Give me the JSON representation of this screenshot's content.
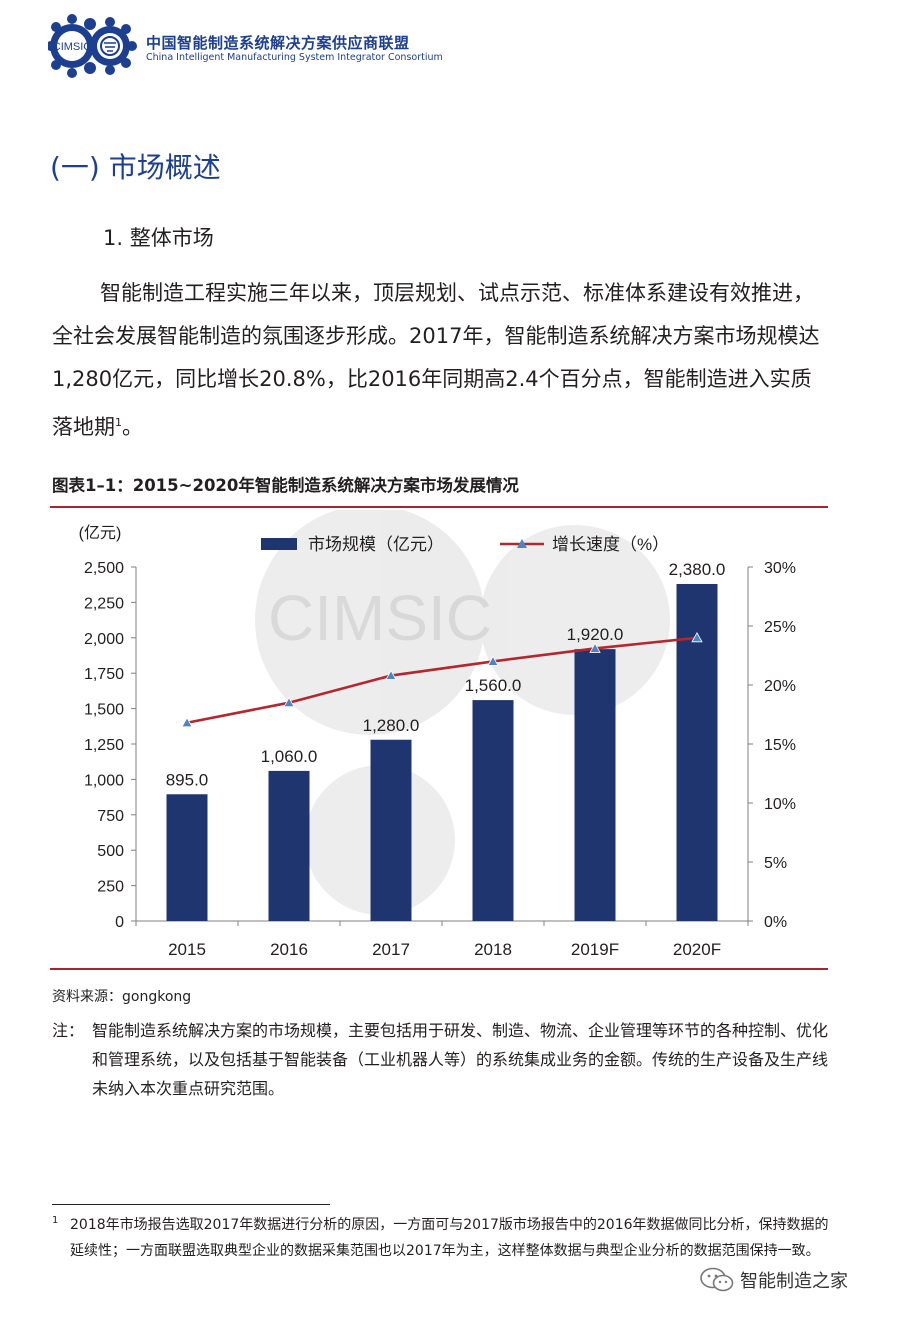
{
  "header": {
    "logo_text": "CIMSIC",
    "org_name_cn": "中国智能制造系统解决方案供应商联盟",
    "org_name_en": "China Intelligent Manufacturing System Integrator Consortium"
  },
  "section_title": "(一) 市场概述",
  "subsection_title": "1. 整体市场",
  "paragraph": {
    "text": "智能制造工程实施三年以来，顶层规划、试点示范、标准体系建设有效推进，全社会发展智能制造的氛围逐步形成。2017年，智能制造系统解决方案市场规模达1,280亿元，同比增长20.8%，比2016年同期高2.4个百分点，智能制造进入实质落地期",
    "footnote_ref": "1",
    "end": "。"
  },
  "figure": {
    "caption": "图表1–1：2015~2020年智能制造系统解决方案市场发展情况",
    "watermark": "CIMSIC",
    "source": "资料来源：gongkong",
    "note_label": "注：",
    "note_text": "智能制造系统解决方案的市场规模，主要包括用于研发、制造、物流、企业管理等环节的各种控制、优化和管理系统，以及包括基于智能装备（工业机器人等）的系统集成业务的金额。传统的生产设备及生产线未纳入本次重点研究范围。"
  },
  "footnote": {
    "number": "1",
    "text": "2018年市场报告选取2017年数据进行分析的原因，一方面可与2017版市场报告中的2016年数据做同比分析，保持数据的延续性；一方面联盟选取典型企业的数据采集范围也以2017年为主，这样整体数据与典型企业分析的数据范围保持一致。"
  },
  "wechat": {
    "label": "智能制造之家"
  },
  "colors": {
    "bar": "#1f356f",
    "line": "#b5272e",
    "marker": "#4a86c5",
    "brand_blue": "#1d3f8f",
    "rule": "#a6262f"
  },
  "chart_data": {
    "type": "bar",
    "categories": [
      "2015",
      "2016",
      "2017",
      "2018",
      "2019F",
      "2020F"
    ],
    "series": [
      {
        "name": "市场规模（亿元）",
        "type": "bar",
        "axis": "left",
        "values": [
          895.0,
          1060.0,
          1280.0,
          1560.0,
          1920.0,
          2380.0
        ]
      },
      {
        "name": "增长速度（%）",
        "type": "line",
        "axis": "right",
        "values": [
          16.8,
          18.5,
          20.8,
          22.0,
          23.1,
          24.0
        ]
      }
    ],
    "data_labels": [
      "895.0",
      "1,060.0",
      "1,280.0",
      "1,560.0",
      "1,920.0",
      "2,380.0"
    ],
    "ylabel_left": "(亿元)",
    "ylim_left": [
      0,
      2500
    ],
    "yticks_left": [
      "0",
      "250",
      "500",
      "750",
      "1,000",
      "1,250",
      "1,500",
      "1,750",
      "2,000",
      "2,250",
      "2,500"
    ],
    "ylim_right": [
      0,
      30
    ],
    "yticks_right": [
      "0%",
      "5%",
      "10%",
      "15%",
      "20%",
      "25%",
      "30%"
    ],
    "grid": false,
    "legend_position": "top"
  }
}
